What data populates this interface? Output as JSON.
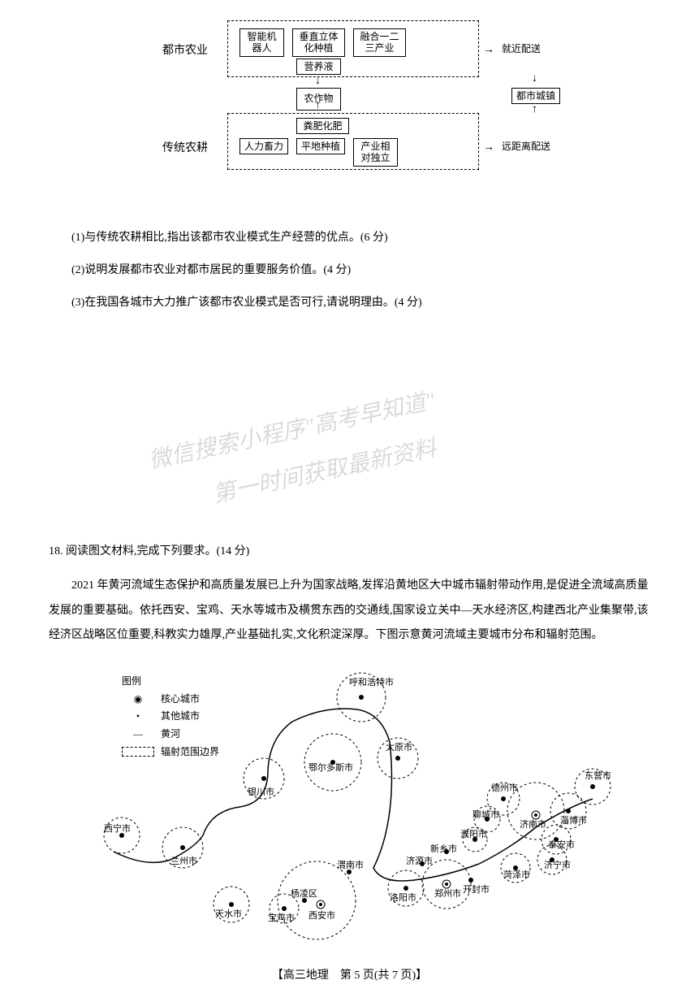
{
  "diagram": {
    "labels": {
      "urban_ag": "都市农业",
      "traditional": "传统农耕"
    },
    "top_boxes": {
      "robot": "智能机\n器人",
      "vertical": "垂直立体\n化种植",
      "fusion": "融合一二\n三产业"
    },
    "nutrient": "营养液",
    "crops": "农作物",
    "manure": "粪肥化肥",
    "bottom_boxes": {
      "manual": "人力畜力",
      "flat": "平地种植",
      "independent": "产业相\n对独立"
    },
    "town": "都市城镇",
    "nearby": "就近配送",
    "remote": "远距离配送"
  },
  "questions": {
    "q1": "(1)与传统农耕相比,指出该都市农业模式生产经营的优点。(6 分)",
    "q2": "(2)说明发展都市农业对都市居民的重要服务价值。(4 分)",
    "q3": "(3)在我国各城市大力推广该都市农业模式是否可行,请说明理由。(4 分)"
  },
  "watermark": {
    "line1": "微信搜索小程序\"高考早知道\"",
    "line2": "第一时间获取最新资料"
  },
  "q18": {
    "title": "18. 阅读图文材料,完成下列要求。(14 分)",
    "para": "2021 年黄河流域生态保护和高质量发展已上升为国家战略,发挥沿黄地区大中城市辐射带动作用,是促进全流域高质量发展的重要基础。依托西安、宝鸡、天水等城市及横贯东西的交通线,国家设立关中—天水经济区,构建西北产业集聚带,该经济区战略区位重要,科教实力雄厚,产业基础扎实,文化积淀深厚。下图示意黄河流域主要城市分布和辐射范围。"
  },
  "legend": {
    "title": "图例",
    "core": "核心城市",
    "other": "其他城市",
    "river": "黄河",
    "boundary": "辐射范围边界"
  },
  "cities": {
    "huhehaote": "呼和浩特市",
    "eerduosi": "鄂尔多斯市",
    "taiyuan": "太原市",
    "yinchuan": "银川市",
    "lanzhou": "兰州市",
    "xining": "西宁市",
    "tianshui": "天水市",
    "baoji": "宝鸡市",
    "xian": "西安市",
    "yangling": "杨凌区",
    "weinan": "渭南市",
    "luoyang": "洛阳市",
    "zhengzhou": "郑州市",
    "kaifeng": "开封市",
    "jiyuan": "济源市",
    "xinxiang": "新乡市",
    "puyang": "濮阳市",
    "liaocheng": "聊城市",
    "jinan": "济南市",
    "dezhou": "德州市",
    "zibo": "淄博市",
    "dongying": "东营市",
    "taian": "泰安市",
    "jining": "济宁市",
    "heze": "菏泽市"
  },
  "footer": "【高三地理　第 5 页(共 7 页)】",
  "colors": {
    "text": "#000000",
    "bg": "#ffffff",
    "watermark": "rgba(0,0,0,0.15)"
  }
}
